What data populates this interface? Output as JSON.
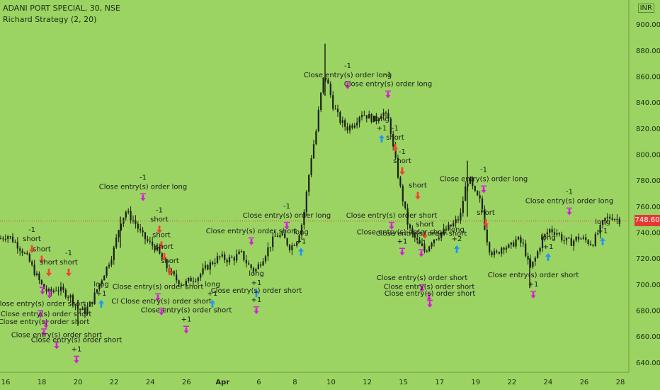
{
  "header": {
    "title": "ADANI PORT SPECIAL, 30, NSE",
    "subtitle": "Richard Strategy (2, 20)",
    "currency": "INR",
    "last_price": "748.60"
  },
  "colors": {
    "background": "#9bd463",
    "candle": "#1a2010",
    "price_line": "#e53935",
    "long_arrow": "#2196f3",
    "short_arrow": "#f44336",
    "close_marker": "#d81bd8",
    "axis_text": "#1c2a12"
  },
  "chart_data": {
    "type": "candlestick",
    "title": "ADANI PORT SPECIAL, 30, NSE",
    "subtitle": "Richard Strategy (2, 20)",
    "y_axis": {
      "position": "right",
      "unit": "INR",
      "ylim": [
        635,
        905
      ],
      "ticks": [
        "640.00",
        "660.00",
        "680.00",
        "700.00",
        "720.00",
        "740.00",
        "760.00",
        "780.00",
        "800.00",
        "820.00",
        "840.00",
        "860.00",
        "880.00",
        "900.00"
      ]
    },
    "x_axis": {
      "ticks": [
        "16",
        "18",
        "20",
        "22",
        "24",
        "26",
        "Apr",
        "6",
        "8",
        "10",
        "12",
        "15",
        "17",
        "19",
        "22",
        "24",
        "26",
        "28"
      ]
    },
    "last_price": 748.6,
    "price_path": [
      [
        0,
        735
      ],
      [
        10,
        738
      ],
      [
        20,
        733
      ],
      [
        30,
        727
      ],
      [
        40,
        719
      ],
      [
        50,
        708
      ],
      [
        60,
        698
      ],
      [
        70,
        693
      ],
      [
        80,
        697
      ],
      [
        90,
        694
      ],
      [
        100,
        690
      ],
      [
        110,
        681
      ],
      [
        120,
        679
      ],
      [
        130,
        687
      ],
      [
        140,
        700
      ],
      [
        150,
        712
      ],
      [
        160,
        725
      ],
      [
        170,
        748
      ],
      [
        178,
        756
      ],
      [
        190,
        748
      ],
      [
        200,
        738
      ],
      [
        210,
        732
      ],
      [
        220,
        728
      ],
      [
        230,
        718
      ],
      [
        240,
        709
      ],
      [
        250,
        703
      ],
      [
        260,
        700
      ],
      [
        270,
        704
      ],
      [
        280,
        706
      ],
      [
        290,
        712
      ],
      [
        300,
        717
      ],
      [
        310,
        721
      ],
      [
        320,
        719
      ],
      [
        330,
        720
      ],
      [
        340,
        724
      ],
      [
        350,
        715
      ],
      [
        360,
        710
      ],
      [
        370,
        719
      ],
      [
        380,
        729
      ],
      [
        390,
        738
      ],
      [
        400,
        736
      ],
      [
        410,
        728
      ],
      [
        420,
        735
      ],
      [
        428,
        750
      ],
      [
        434,
        775
      ],
      [
        440,
        800
      ],
      [
        446,
        816
      ],
      [
        452,
        842
      ],
      [
        458,
        862
      ],
      [
        464,
        852
      ],
      [
        470,
        838
      ],
      [
        480,
        826
      ],
      [
        490,
        820
      ],
      [
        500,
        824
      ],
      [
        510,
        832
      ],
      [
        520,
        829
      ],
      [
        530,
        826
      ],
      [
        540,
        833
      ],
      [
        550,
        825
      ],
      [
        555,
        805
      ],
      [
        560,
        790
      ],
      [
        565,
        775
      ],
      [
        570,
        762
      ],
      [
        575,
        748
      ],
      [
        580,
        740
      ],
      [
        590,
        732
      ],
      [
        600,
        725
      ],
      [
        610,
        734
      ],
      [
        620,
        738
      ],
      [
        630,
        742
      ],
      [
        640,
        746
      ],
      [
        650,
        752
      ],
      [
        656,
        772
      ],
      [
        662,
        782
      ],
      [
        670,
        770
      ],
      [
        680,
        762
      ],
      [
        686,
        738
      ],
      [
        692,
        726
      ],
      [
        700,
        722
      ],
      [
        710,
        730
      ],
      [
        720,
        728
      ],
      [
        730,
        735
      ],
      [
        740,
        729
      ],
      [
        748,
        711
      ],
      [
        756,
        720
      ],
      [
        766,
        735
      ],
      [
        776,
        742
      ],
      [
        786,
        740
      ],
      [
        796,
        734
      ],
      [
        806,
        732
      ],
      [
        816,
        736
      ],
      [
        826,
        734
      ],
      [
        836,
        731
      ],
      [
        846,
        741
      ],
      [
        854,
        750
      ],
      [
        864,
        752
      ],
      [
        872,
        750
      ],
      [
        878,
        748.6
      ]
    ],
    "price_spikes": [
      {
        "x": 459,
        "high": 885,
        "low": 845
      },
      {
        "x": 170,
        "high": 752,
        "low": 728
      },
      {
        "x": 660,
        "high": 795,
        "low": 752
      },
      {
        "x": 748,
        "high": 720,
        "low": 697
      },
      {
        "x": 110,
        "high": 688,
        "low": 668
      }
    ],
    "signals": [
      {
        "x": 45,
        "y": 730,
        "type": "short",
        "lines": [
          "-1",
          "short"
        ]
      },
      {
        "x": 59,
        "y": 722,
        "type": "short",
        "lines": [
          "short"
        ]
      },
      {
        "x": 69,
        "y": 712,
        "type": "short",
        "lines": [
          "short"
        ]
      },
      {
        "x": 97,
        "y": 712,
        "type": "short",
        "lines": [
          "-1",
          "short"
        ]
      },
      {
        "x": 60,
        "y": 698,
        "type": "close",
        "lines": []
      },
      {
        "x": 70,
        "y": 695,
        "type": "close",
        "lines": []
      },
      {
        "x": 57,
        "y": 680,
        "type": "close",
        "lines": [
          "Close entry(s) order short"
        ]
      },
      {
        "x": 65,
        "y": 672,
        "type": "close",
        "lines": [
          "Close entry(s) order short"
        ]
      },
      {
        "x": 62,
        "y": 666,
        "type": "close",
        "lines": [
          "Close entry(s) order short"
        ]
      },
      {
        "x": 80,
        "y": 656,
        "type": "close",
        "lines": [
          "Close entry(s) order short"
        ]
      },
      {
        "x": 108,
        "y": 645,
        "type": "close",
        "lines": [
          "Close entry(s) order short",
          "+1"
        ]
      },
      {
        "x": 143,
        "y": 688,
        "type": "long",
        "lines": [
          "long",
          "+1"
        ]
      },
      {
        "x": 202,
        "y": 770,
        "type": "close",
        "lines": [
          "-1",
          "Close entry(s) order long"
        ]
      },
      {
        "x": 225,
        "y": 745,
        "type": "short",
        "lines": [
          "-1",
          "short"
        ]
      },
      {
        "x": 228,
        "y": 733,
        "type": "short",
        "lines": [
          "short"
        ]
      },
      {
        "x": 232,
        "y": 724,
        "type": "short",
        "lines": [
          "short"
        ]
      },
      {
        "x": 240,
        "y": 713,
        "type": "short",
        "lines": [
          "short"
        ]
      },
      {
        "x": 223,
        "y": 693,
        "type": "close",
        "lines": [
          "Close entry(s) order short"
        ]
      },
      {
        "x": 228,
        "y": 682,
        "type": "close",
        "lines": [
          "Cl Close entry(s) order short"
        ]
      },
      {
        "x": 263,
        "y": 668,
        "type": "close",
        "lines": [
          "Close entry(s) order short",
          "+1"
        ]
      },
      {
        "x": 300,
        "y": 688,
        "type": "long",
        "lines": [
          "long",
          "+1"
        ]
      },
      {
        "x": 362,
        "y": 696,
        "type": "long",
        "lines": [
          "long",
          "+1"
        ]
      },
      {
        "x": 362,
        "y": 683,
        "type": "close",
        "lines": [
          "Close entry(s) order short",
          "+1"
        ]
      },
      {
        "x": 355,
        "y": 736,
        "type": "close",
        "lines": [
          "Close entry(s) order short"
        ]
      },
      {
        "x": 405,
        "y": 748,
        "type": "close",
        "lines": [
          "-1",
          "Close entry(s) order long"
        ]
      },
      {
        "x": 425,
        "y": 728,
        "type": "long",
        "lines": [
          "long",
          "+1"
        ]
      },
      {
        "x": 491,
        "y": 856,
        "type": "close",
        "lines": [
          "-1",
          "Close entry(s) order long"
        ]
      },
      {
        "x": 548,
        "y": 849,
        "type": "close",
        "lines": [
          "-1",
          "Close entry(s) order long"
        ]
      },
      {
        "x": 539,
        "y": 815,
        "type": "long",
        "lines": [
          "long",
          "+1"
        ]
      },
      {
        "x": 558,
        "y": 808,
        "type": "short",
        "lines": [
          "-1",
          "short"
        ]
      },
      {
        "x": 568,
        "y": 790,
        "type": "short",
        "lines": [
          "-1",
          "short"
        ]
      },
      {
        "x": 590,
        "y": 771,
        "type": "short",
        "lines": [
          "short"
        ]
      },
      {
        "x": 600,
        "y": 741,
        "type": "short",
        "lines": [
          "short"
        ]
      },
      {
        "x": 553,
        "y": 748,
        "type": "close",
        "lines": [
          "Close entry(s) order short"
        ]
      },
      {
        "x": 568,
        "y": 728,
        "type": "close",
        "lines": [
          "Close entry(s) order short",
          "+1"
        ]
      },
      {
        "x": 595,
        "y": 727,
        "type": "close",
        "lines": [
          "Close entry(s) order short",
          "+1"
        ]
      },
      {
        "x": 596,
        "y": 700,
        "type": "close",
        "lines": [
          "Close entry(s) order short"
        ]
      },
      {
        "x": 606,
        "y": 693,
        "type": "close",
        "lines": [
          "Close entry(s) order short"
        ]
      },
      {
        "x": 607,
        "y": 688,
        "type": "close",
        "lines": [
          "Close entry(s) order short"
        ]
      },
      {
        "x": 645,
        "y": 730,
        "type": "long",
        "lines": [
          "long",
          "+2"
        ]
      },
      {
        "x": 683,
        "y": 776,
        "type": "close",
        "lines": [
          "-1",
          "Close entry(s) order long"
        ]
      },
      {
        "x": 686,
        "y": 750,
        "type": "short",
        "lines": [
          "short"
        ]
      },
      {
        "x": 753,
        "y": 695,
        "type": "close",
        "lines": [
          "Close entry(s) order short",
          "+1"
        ]
      },
      {
        "x": 774,
        "y": 724,
        "type": "long",
        "lines": [
          "long",
          "+1"
        ]
      },
      {
        "x": 804,
        "y": 759,
        "type": "close",
        "lines": [
          "-1",
          "Close entry(s) order long"
        ]
      },
      {
        "x": 851,
        "y": 736,
        "type": "long",
        "lines": [
          "long",
          "+1"
        ]
      }
    ]
  }
}
